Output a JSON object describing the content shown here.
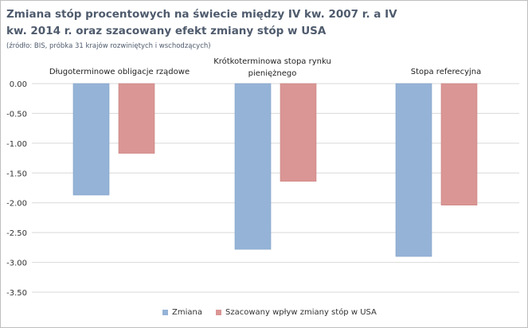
{
  "chart_data": {
    "type": "bar",
    "title": "Zmiana stóp procentowych na świecie między IV kw. 2007 r. a IV kw. 2014 r. oraz szacowany efekt zmiany stóp w USA",
    "subtitle": "(źródło: BIS, próbka 31 krajów rozwiniętych i wschodzących)",
    "categories": [
      "Długoterminowe obligacje rządowe",
      "Krótkoterminowa stopa rynku pieniężnego",
      "Stopa referecyjna"
    ],
    "series": [
      {
        "name": "Zmiana",
        "values": [
          -1.87,
          -2.78,
          -2.9
        ],
        "color": "#95b3d7"
      },
      {
        "name": "Szacowany wpływ zmiany stóp w USA",
        "values": [
          -1.17,
          -1.64,
          -2.04
        ],
        "color": "#da9694"
      }
    ],
    "ylim": [
      -3.5,
      0
    ],
    "yticks": [
      "0.00",
      "-0.50",
      "-1.00",
      "-1.50",
      "-2.00",
      "-2.50",
      "-3.00",
      "-3.50"
    ],
    "grid": true,
    "legend": "bottom"
  }
}
